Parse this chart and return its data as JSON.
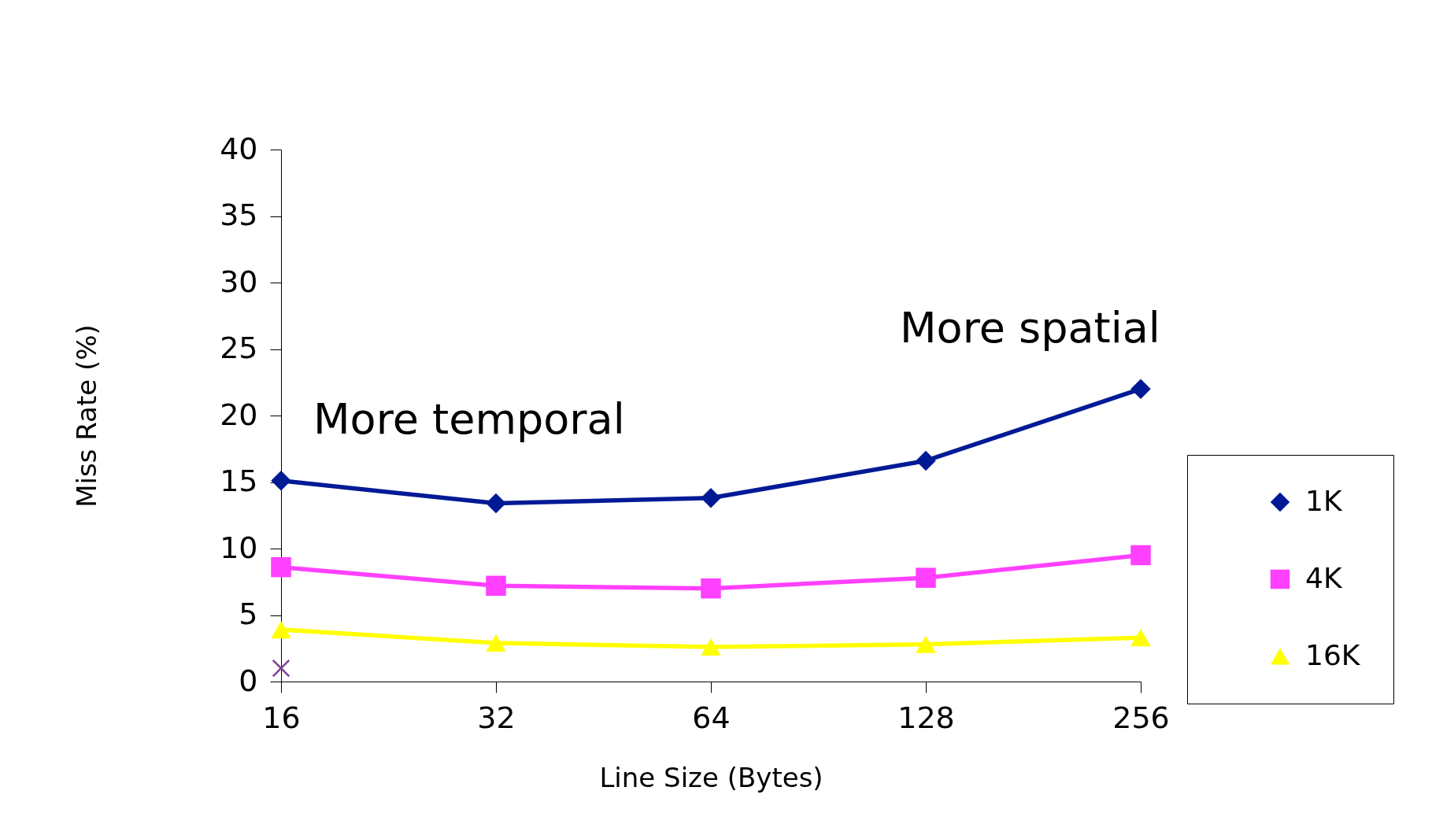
{
  "chart_data": {
    "type": "line",
    "xlabel": "Line Size (Bytes)",
    "ylabel": "Miss Rate (%)",
    "categories": [
      "16",
      "32",
      "64",
      "128",
      "256"
    ],
    "ylim": [
      0,
      40
    ],
    "yticks": [
      0,
      5,
      10,
      15,
      20,
      25,
      30,
      35,
      40
    ],
    "grid": false,
    "legend": "right",
    "annotations": [
      "More temporal",
      "More spatial"
    ],
    "series": [
      {
        "name": "1K",
        "color": "#001a96",
        "marker": "diamond",
        "values": [
          15.1,
          13.4,
          13.8,
          16.6,
          22.0
        ]
      },
      {
        "name": "4K",
        "color": "#ff40ff",
        "marker": "square",
        "values": [
          8.6,
          7.2,
          7.0,
          7.8,
          9.5
        ]
      },
      {
        "name": "16K",
        "color": "#ffff00",
        "marker": "triangle",
        "values": [
          3.9,
          2.9,
          2.6,
          2.8,
          3.3
        ]
      },
      {
        "type": "scatter",
        "color": "#7f3f98",
        "marker": "cross",
        "values": [
          1.0,
          null,
          null,
          null,
          null
        ]
      }
    ]
  }
}
